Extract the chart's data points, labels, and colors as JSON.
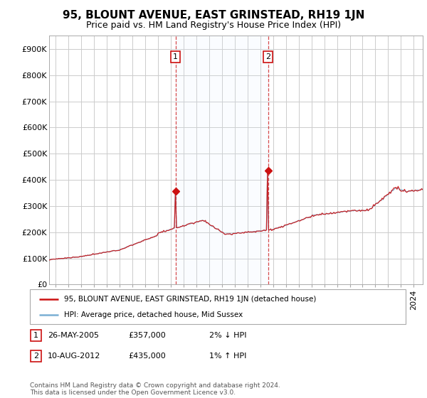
{
  "title": "95, BLOUNT AVENUE, EAST GRINSTEAD, RH19 1JN",
  "subtitle": "Price paid vs. HM Land Registry's House Price Index (HPI)",
  "ylim": [
    0,
    950000
  ],
  "yticks": [
    0,
    100000,
    200000,
    300000,
    400000,
    500000,
    600000,
    700000,
    800000,
    900000
  ],
  "ytick_labels": [
    "£0",
    "£100K",
    "£200K",
    "£300K",
    "£400K",
    "£500K",
    "£600K",
    "£700K",
    "£800K",
    "£900K"
  ],
  "hpi_color": "#7ab0d4",
  "price_color": "#cc1111",
  "vline_color": "#cc1111",
  "grid_color": "#cccccc",
  "span_color": "#ddeeff",
  "sale1_year": 2005.38,
  "sale1_price": 357000,
  "sale2_year": 2012.61,
  "sale2_price": 435000,
  "xmin": 1995.5,
  "xmax": 2024.7,
  "xtick_start": 1996,
  "xtick_end": 2024,
  "legend_price_label": "95, BLOUNT AVENUE, EAST GRINSTEAD, RH19 1JN (detached house)",
  "legend_hpi_label": "HPI: Average price, detached house, Mid Sussex",
  "table_rows": [
    {
      "num": "1",
      "date": "26-MAY-2005",
      "price": "£357,000",
      "hpi": "2% ↓ HPI"
    },
    {
      "num": "2",
      "date": "10-AUG-2012",
      "price": "£435,000",
      "hpi": "1% ↑ HPI"
    }
  ],
  "footer": "Contains HM Land Registry data © Crown copyright and database right 2024.\nThis data is licensed under the Open Government Licence v3.0.",
  "title_fontsize": 11,
  "subtitle_fontsize": 9,
  "tick_fontsize": 8,
  "label_fontsize": 8
}
